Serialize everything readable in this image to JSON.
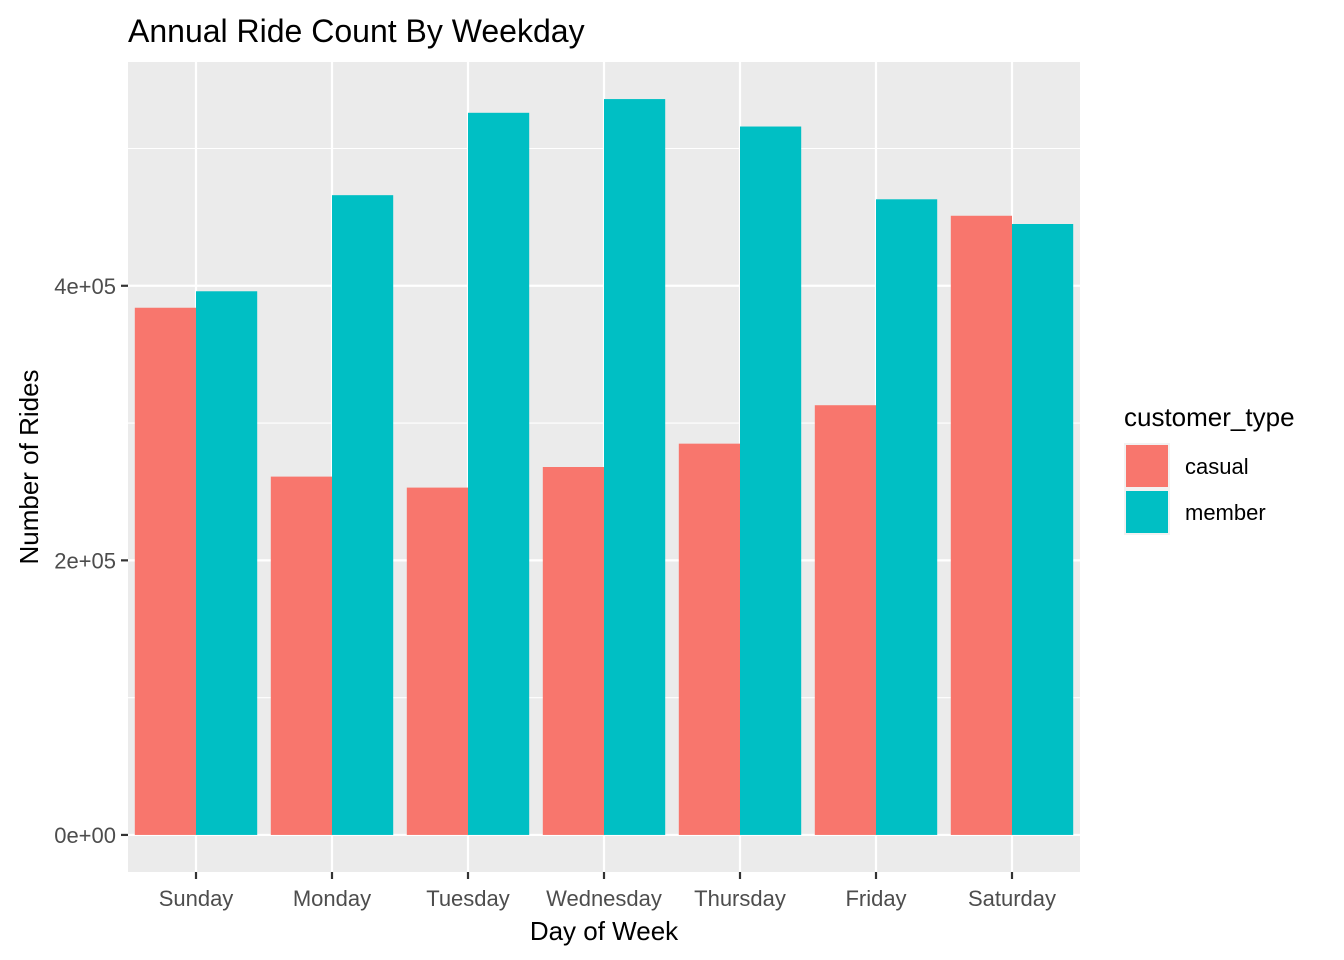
{
  "chart_data": {
    "type": "bar",
    "title": "Annual Ride Count By Weekday",
    "xlabel": "Day of Week",
    "ylabel": "Number of Rides",
    "categories": [
      "Sunday",
      "Monday",
      "Tuesday",
      "Wednesday",
      "Thursday",
      "Friday",
      "Saturday"
    ],
    "series": [
      {
        "name": "casual",
        "color": "#F8766D",
        "values": [
          384000,
          261000,
          253000,
          268000,
          285000,
          313000,
          451000
        ]
      },
      {
        "name": "member",
        "color": "#00BFC4",
        "values": [
          396000,
          466000,
          526000,
          536000,
          516000,
          463000,
          445000
        ]
      }
    ],
    "ylim": [
      -27000,
      563000
    ],
    "y_ticks": [
      0,
      200000,
      400000
    ],
    "y_tick_labels": [
      "0e+00",
      "2e+05",
      "4e+05"
    ],
    "y_minor_ticks": [
      100000,
      300000,
      500000
    ],
    "grid": true,
    "legend": {
      "title": "customer_type",
      "position": "right"
    },
    "panel_background": "#EBEBEB",
    "grid_color": "#FFFFFF"
  }
}
